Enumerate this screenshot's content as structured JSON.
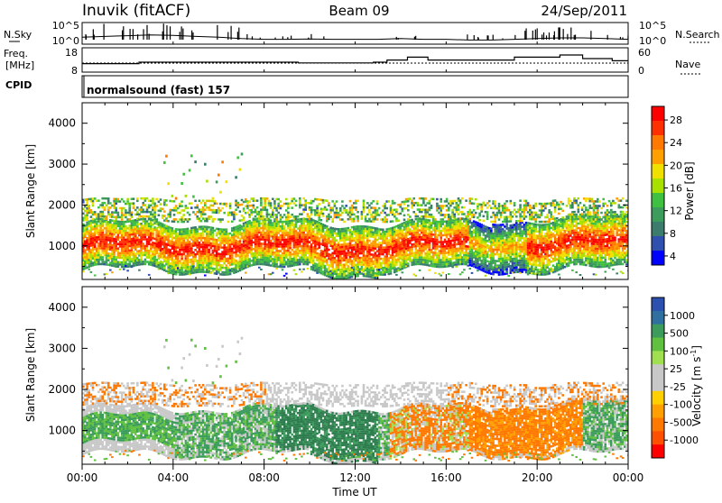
{
  "header": {
    "title": "Inuvik (fitACF)",
    "beam": "Beam 09",
    "date": "24/Sep/2011"
  },
  "panels": {
    "nsky_label": "N.Sky",
    "nsky_ticks": [
      "10^5",
      "10^0"
    ],
    "nsearch_label": "N.Search",
    "nsearch_ticks": [
      "10^5",
      "10^0"
    ],
    "freq_label_1": "Freq.",
    "freq_label_2": "[MHz]",
    "freq_ticks": [
      "18",
      "8"
    ],
    "nave_label": "Nave",
    "nave_ticks": [
      "60",
      "0"
    ],
    "cpid_label": "CPID",
    "cpid_text": "normalsound (fast) 157"
  },
  "chart_data": [
    {
      "type": "heatmap",
      "name": "power-panel",
      "ylabel": "Slant Range [km]",
      "yticks": [
        "4000",
        "3000",
        "2000",
        "1000"
      ],
      "ylim": [
        180,
        4500
      ],
      "xlim": [
        0,
        24
      ],
      "xticks": [
        "00:00",
        "04:00",
        "08:00",
        "12:00",
        "16:00",
        "20:00",
        "00:00"
      ],
      "colorbar": {
        "label": "Power [dB]",
        "labels": [
          "28",
          "24",
          "20",
          "16",
          "12",
          "8",
          "4"
        ],
        "colors": [
          "#ff0000",
          "#ff3000",
          "#ff7800",
          "#ffa000",
          "#f0e000",
          "#a8e000",
          "#40c040",
          "#3c9c5c",
          "#3c7c6c",
          "#3050b0",
          "#0000ff"
        ],
        "range": [
          0,
          30
        ]
      },
      "main_band_km": [
        600,
        1400
      ],
      "upper_band_km": [
        1600,
        2100
      ]
    },
    {
      "type": "heatmap",
      "name": "velocity-panel",
      "ylabel": "Slant Range [km]",
      "yticks": [
        "4000",
        "3000",
        "2000",
        "1000"
      ],
      "ylim": [
        180,
        4500
      ],
      "xlim": [
        0,
        24
      ],
      "xticks": [
        "00:00",
        "04:00",
        "08:00",
        "12:00",
        "16:00",
        "20:00",
        "00:00"
      ],
      "xlabel": "Time UT",
      "colorbar": {
        "label_prefix": "Velocity [m s",
        "label_sup": "-1",
        "label_suffix": "]",
        "labels": [
          "1000",
          "500",
          "100",
          "25",
          "-25",
          "-100",
          "-500",
          "-1000"
        ],
        "colors": [
          "#2c50b0",
          "#3070a0",
          "#3c9c5c",
          "#60c040",
          "#a0e050",
          "#c8c8c8",
          "#c8c8c8",
          "#ffd000",
          "#ffa000",
          "#ff7800",
          "#ff5000",
          "#ff0000"
        ]
      }
    }
  ],
  "series": {
    "nsky": [
      0.6,
      0.7,
      0.8,
      0.9,
      0.85,
      0.7,
      0.6,
      0.4,
      0.3,
      0.3,
      0.35,
      0.3,
      0.3,
      0.3,
      0.4,
      0.3,
      0.3,
      0.2,
      0.2,
      0.3,
      0.4,
      0.5,
      0.5,
      0.4,
      0.3
    ],
    "nave_steps": [
      [
        0,
        0.4
      ],
      [
        2.5,
        0.5
      ],
      [
        9.5,
        0.45
      ],
      [
        12.8,
        0.5
      ],
      [
        13.4,
        0.65
      ],
      [
        14.3,
        0.85
      ],
      [
        15.2,
        0.65
      ],
      [
        19.0,
        0.85
      ],
      [
        21.0,
        1.0
      ],
      [
        22.0,
        0.75
      ],
      [
        23.3,
        0.6
      ],
      [
        24,
        0.6
      ]
    ]
  }
}
